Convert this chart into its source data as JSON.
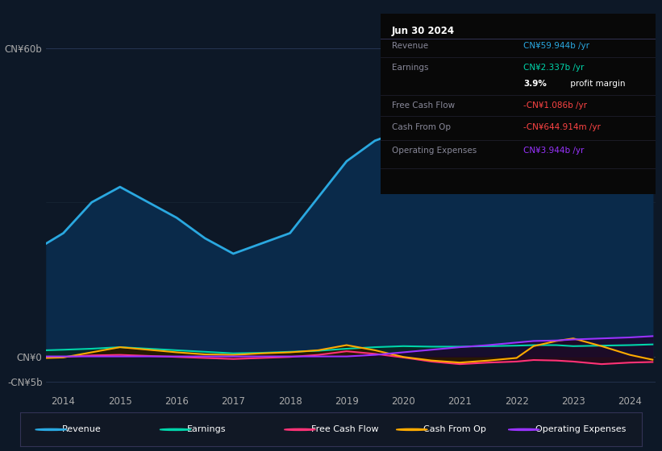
{
  "bg_color": "#0d1827",
  "plot_bg_color": "#0d1827",
  "grid_color": "#1e3050",
  "years": [
    2013.7,
    2014.0,
    2014.5,
    2015.0,
    2015.5,
    2016.0,
    2016.5,
    2017.0,
    2017.5,
    2018.0,
    2018.5,
    2019.0,
    2019.5,
    2020.0,
    2020.5,
    2021.0,
    2021.5,
    2022.0,
    2022.3,
    2022.7,
    2023.0,
    2023.5,
    2024.0,
    2024.4
  ],
  "revenue": [
    22,
    24,
    30,
    33,
    30,
    27,
    23,
    20,
    22,
    24,
    31,
    38,
    42,
    44,
    46,
    47,
    49,
    52,
    55,
    55,
    52,
    53,
    57,
    60
  ],
  "earnings": [
    1.2,
    1.3,
    1.5,
    1.8,
    1.5,
    1.2,
    0.9,
    0.6,
    0.7,
    0.9,
    1.1,
    1.5,
    1.8,
    2.0,
    1.9,
    1.9,
    2.0,
    2.1,
    2.2,
    2.2,
    2.0,
    2.1,
    2.2,
    2.337
  ],
  "free_cash_flow": [
    -0.2,
    -0.1,
    0.2,
    0.3,
    0.1,
    -0.1,
    -0.3,
    -0.5,
    -0.3,
    -0.1,
    0.3,
    1.0,
    0.5,
    -0.2,
    -1.0,
    -1.5,
    -1.2,
    -1.0,
    -0.7,
    -0.8,
    -1.0,
    -1.5,
    -1.2,
    -1.086
  ],
  "cash_from_op": [
    -0.3,
    -0.2,
    0.8,
    1.8,
    1.3,
    0.8,
    0.4,
    0.3,
    0.6,
    0.8,
    1.2,
    2.2,
    1.2,
    -0.1,
    -0.8,
    -1.2,
    -0.8,
    -0.3,
    2.0,
    3.0,
    3.5,
    2.0,
    0.3,
    -0.6449
  ],
  "operating_expenses": [
    0.0,
    0.0,
    0.0,
    0.0,
    0.0,
    0.0,
    0.0,
    0.0,
    0.0,
    0.0,
    0.0,
    0.0,
    0.3,
    0.8,
    1.3,
    1.8,
    2.2,
    2.7,
    3.0,
    3.1,
    3.3,
    3.5,
    3.7,
    3.944
  ],
  "revenue_color": "#2aa8e0",
  "revenue_fill": "#0a2a4a",
  "earnings_color": "#00d4aa",
  "earnings_fill": "#082820",
  "free_cash_flow_color": "#ff3377",
  "free_cash_flow_fill": "#2a0818",
  "cash_from_op_color": "#ffaa00",
  "cash_from_op_fill": "#2a1a00",
  "operating_expenses_color": "#9933ff",
  "operating_expenses_fill": "#1a0830",
  "ylim": [
    -7,
    65
  ],
  "yticks": [
    60,
    0,
    -5
  ],
  "ytick_labels": [
    "CN¥60b",
    "CN¥0",
    "-CN¥5b"
  ],
  "xticks": [
    2014,
    2015,
    2016,
    2017,
    2018,
    2019,
    2020,
    2021,
    2022,
    2023,
    2024
  ],
  "infobox_title": "Jun 30 2024",
  "info_rows": [
    {
      "label": "Revenue",
      "value": "CN¥59.944b /yr",
      "value_color": "#2aa8e0"
    },
    {
      "label": "Earnings",
      "value": "CN¥2.337b /yr",
      "value_color": "#00d4aa"
    },
    {
      "label": "",
      "value2_bold": "3.9%",
      "value2_rest": " profit margin",
      "value_color": "#ffffff"
    },
    {
      "label": "Free Cash Flow",
      "value": "-CN¥1.086b /yr",
      "value_color": "#ff4444"
    },
    {
      "label": "Cash From Op",
      "value": "-CN¥644.914m /yr",
      "value_color": "#ff4444"
    },
    {
      "label": "Operating Expenses",
      "value": "CN¥3.944b /yr",
      "value_color": "#9933ff"
    }
  ],
  "legend_items": [
    {
      "label": "Revenue",
      "color": "#2aa8e0"
    },
    {
      "label": "Earnings",
      "color": "#00d4aa"
    },
    {
      "label": "Free Cash Flow",
      "color": "#ff3377"
    },
    {
      "label": "Cash From Op",
      "color": "#ffaa00"
    },
    {
      "label": "Operating Expenses",
      "color": "#9933ff"
    }
  ]
}
